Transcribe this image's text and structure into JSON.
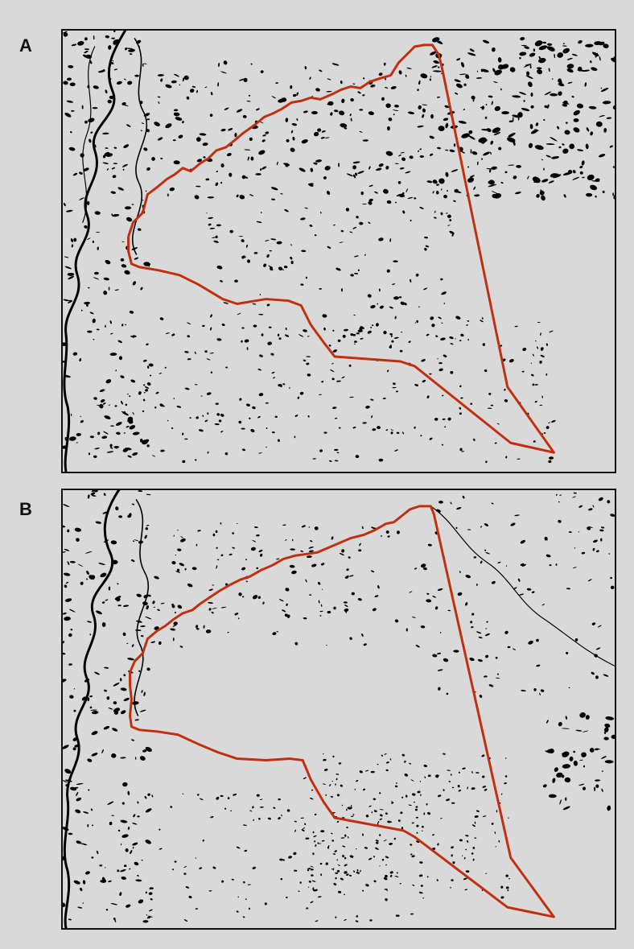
{
  "panels": [
    {
      "label": "A"
    },
    {
      "label": "B"
    }
  ],
  "colors": {
    "background": "#d9d9d9",
    "water": "#000000",
    "boundary": "#c0300e",
    "frame": "#111111"
  }
}
